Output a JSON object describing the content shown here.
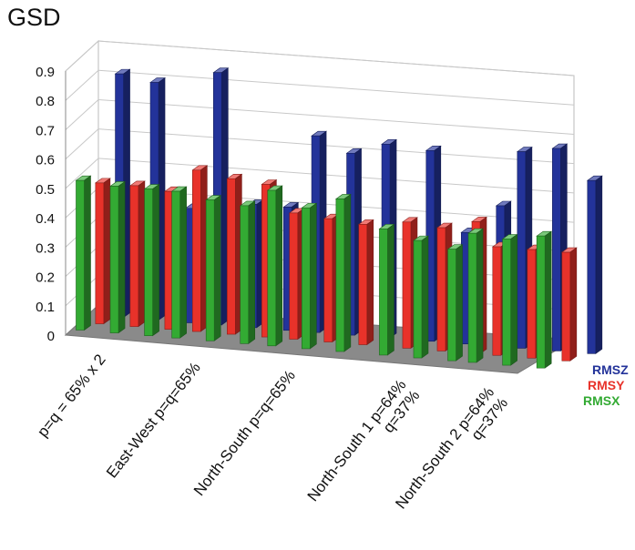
{
  "chart_data": {
    "type": "bar",
    "title": "GSD",
    "ylim": [
      0,
      0.9
    ],
    "yticks": [
      "0",
      "0.1",
      "0.2",
      "0.3",
      "0.4",
      "0.5",
      "0.6",
      "0.7",
      "0.8",
      "0.9"
    ],
    "grid": true,
    "legend_placement": "right",
    "group_labels": [
      [
        "p=q = 65% x 2"
      ],
      [
        "East-West p=q=65%"
      ],
      [
        "North-South p=q=65%"
      ],
      [
        "North-South 1 p=64%",
        "q=37%"
      ],
      [
        "North-South 2 p=64%",
        "q=37%"
      ]
    ],
    "series": [
      {
        "name": "RMSX",
        "color": "#33aa33",
        "values": [
          0.51,
          0.5,
          0.5,
          0.5,
          0.48,
          0.47,
          0.53,
          0.48,
          0.52,
          0.43,
          0.4,
          0.38,
          0.44,
          0.43,
          0.45
        ]
      },
      {
        "name": "RMSY",
        "color": "#e8322a",
        "values": [
          0.48,
          0.48,
          0.47,
          0.55,
          0.53,
          0.52,
          0.43,
          0.42,
          0.41,
          0.43,
          0.42,
          0.45,
          0.37,
          0.37,
          0.37
        ]
      },
      {
        "name": "RMSZ",
        "color": "#23339a",
        "values": [
          0.83,
          0.81,
          0.39,
          0.86,
          0.42,
          0.42,
          0.67,
          0.62,
          0.66,
          0.65,
          0.38,
          0.48,
          0.67,
          0.69,
          0.59
        ]
      }
    ],
    "legend_labels": [
      "RMSZ",
      "RMSY",
      "RMSX"
    ]
  }
}
